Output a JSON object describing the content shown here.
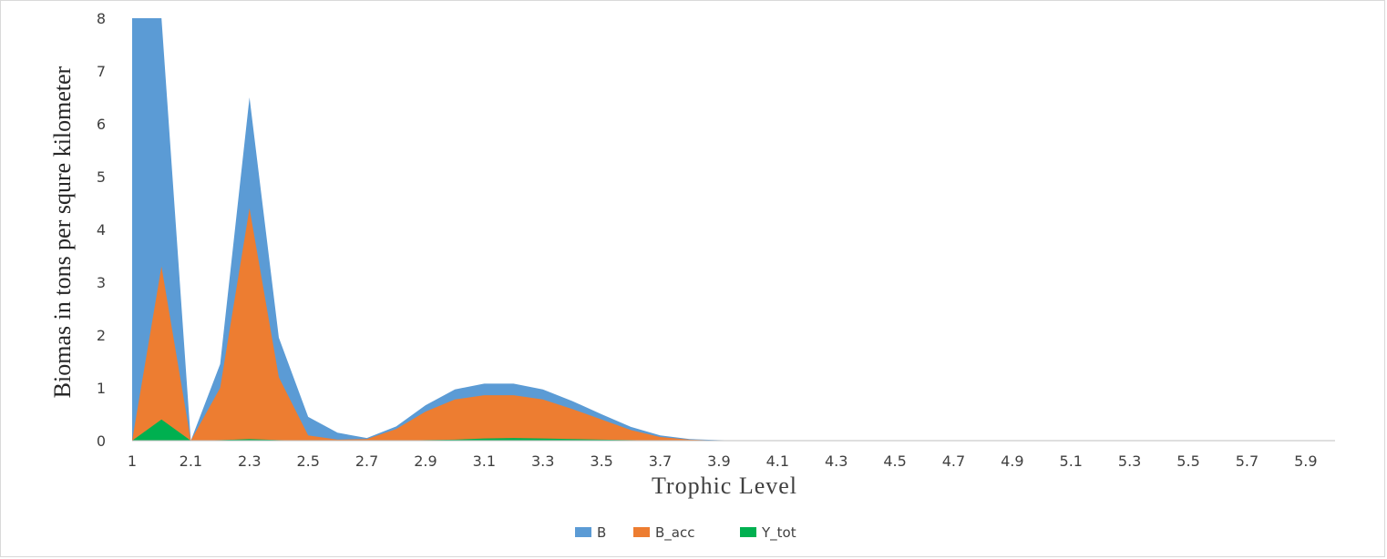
{
  "chart_data": {
    "type": "area",
    "xlabel": "Trophic Level",
    "ylabel": "Biomas in tons per squre kilometer",
    "ylim": [
      0,
      8
    ],
    "yticks": [
      "0",
      "1",
      "2",
      "3",
      "4",
      "5",
      "6",
      "7",
      "8"
    ],
    "x_tick_labels": [
      "1",
      "2.1",
      "2.3",
      "2.5",
      "2.7",
      "2.9",
      "3.1",
      "3.3",
      "3.5",
      "3.7",
      "3.9",
      "4.1",
      "4.3",
      "4.5",
      "4.7",
      "4.9",
      "5.1",
      "5.3",
      "5.5",
      "5.7",
      "5.9"
    ],
    "x": [
      1.0,
      2.0,
      2.1,
      2.2,
      2.3,
      2.4,
      2.5,
      2.6,
      2.7,
      2.8,
      2.9,
      3.0,
      3.1,
      3.2,
      3.3,
      3.4,
      3.5,
      3.6,
      3.7,
      3.8,
      3.9,
      4.0,
      4.1,
      4.2,
      4.3,
      4.4,
      4.5,
      4.6,
      4.7,
      4.8,
      4.9,
      5.0,
      5.1,
      5.2,
      5.3,
      5.4,
      5.5,
      5.6,
      5.7,
      5.8,
      5.9,
      6.0
    ],
    "grid": false,
    "legend": "bottom",
    "series": [
      {
        "name": "B",
        "color": "#5b9bd5",
        "values": [
          8.0,
          8.0,
          0.0,
          1.45,
          6.5,
          1.95,
          0.45,
          0.15,
          0.05,
          0.27,
          0.67,
          0.97,
          1.08,
          1.08,
          0.97,
          0.75,
          0.5,
          0.26,
          0.1,
          0.03,
          0.01,
          0,
          0,
          0,
          0,
          0,
          0,
          0,
          0,
          0,
          0,
          0,
          0,
          0,
          0,
          0,
          0,
          0,
          0,
          0,
          0,
          0
        ]
      },
      {
        "name": "B_acc",
        "color": "#ed7d31",
        "values": [
          0.0,
          3.3,
          0.0,
          1.0,
          4.4,
          1.2,
          0.1,
          0.02,
          0.03,
          0.22,
          0.55,
          0.78,
          0.86,
          0.86,
          0.78,
          0.6,
          0.4,
          0.2,
          0.07,
          0.02,
          0.0,
          0,
          0,
          0,
          0,
          0,
          0,
          0,
          0,
          0,
          0,
          0,
          0,
          0,
          0,
          0,
          0,
          0,
          0,
          0,
          0,
          0
        ]
      },
      {
        "name": "Y_tot",
        "color": "#00b050",
        "values": [
          0.0,
          0.4,
          0.0,
          0.01,
          0.03,
          0.01,
          0.0,
          0.0,
          0.0,
          0.0,
          0.01,
          0.02,
          0.04,
          0.05,
          0.04,
          0.03,
          0.02,
          0.01,
          0.0,
          0.0,
          0.0,
          0,
          0,
          0,
          0,
          0,
          0,
          0,
          0,
          0,
          0,
          0,
          0,
          0,
          0,
          0,
          0,
          0,
          0,
          0,
          0,
          0
        ]
      }
    ]
  }
}
